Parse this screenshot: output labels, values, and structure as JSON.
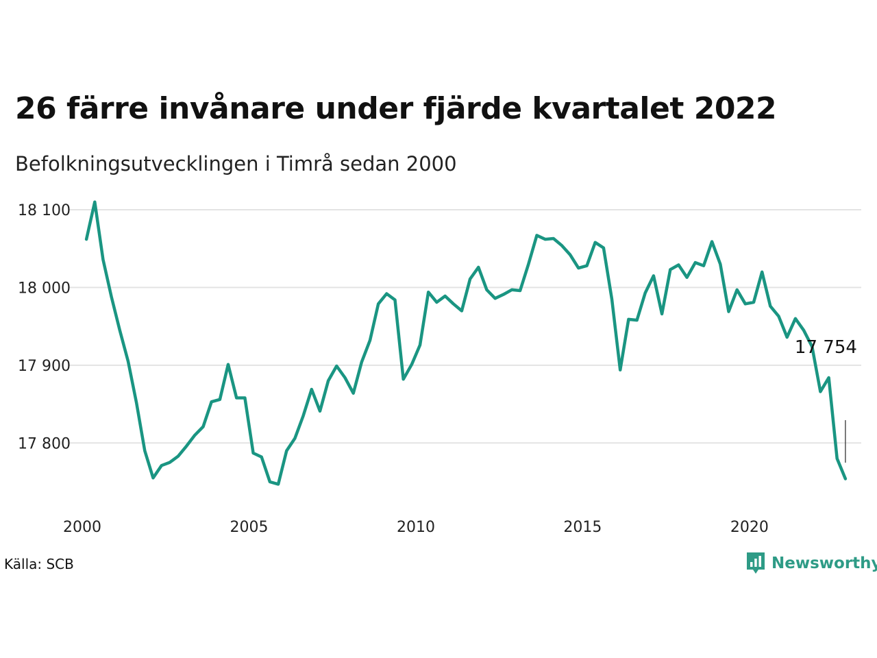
{
  "title": "26 färre invånare under fjärde kvartalet 2022",
  "subtitle": "Befolkningsutvecklingen i Timrå sedan 2000",
  "source": "Källa: SCB",
  "brand": "Newsworthy",
  "colors": {
    "line": "#1a9582",
    "grid": "#e3e3e3",
    "brand": "#2e9b86"
  },
  "chart_data": {
    "type": "line",
    "title": "26 färre invånare under fjärde kvartalet 2022",
    "subtitle": "Befolkningsutvecklingen i Timrå sedan 2000",
    "xlabel": "",
    "ylabel": "",
    "xlim": [
      2000,
      2023
    ],
    "ylim": [
      17735,
      18115
    ],
    "x_ticks": [
      2000,
      2005,
      2010,
      2015,
      2020
    ],
    "x_tick_labels": [
      "2000",
      "2005",
      "2010",
      "2015",
      "2020"
    ],
    "y_ticks": [
      17800,
      17900,
      18000,
      18100
    ],
    "y_tick_labels": [
      "17 800",
      "17 900",
      "18 000",
      "18 100"
    ],
    "grid": true,
    "last_value_label": "17 754",
    "series": [
      {
        "x": [
          2000.125,
          2000.375,
          2000.625,
          2000.875,
          2001.125,
          2001.375,
          2001.625,
          2001.875,
          2002.125,
          2002.375,
          2002.625,
          2002.875,
          2003.125,
          2003.375,
          2003.625,
          2003.875,
          2004.125,
          2004.375,
          2004.625,
          2004.875,
          2005.125,
          2005.375,
          2005.625,
          2005.875,
          2006.125,
          2006.375,
          2006.625,
          2006.875,
          2007.125,
          2007.375,
          2007.625,
          2007.875,
          2008.125,
          2008.375,
          2008.625,
          2008.875,
          2009.125,
          2009.375,
          2009.625,
          2009.875,
          2010.125,
          2010.375,
          2010.625,
          2010.875,
          2011.125,
          2011.375,
          2011.625,
          2011.875,
          2012.125,
          2012.375,
          2012.625,
          2012.875,
          2013.125,
          2013.375,
          2013.625,
          2013.875,
          2014.125,
          2014.375,
          2014.625,
          2014.875,
          2015.125,
          2015.375,
          2015.625,
          2015.875,
          2016.125,
          2016.375,
          2016.625,
          2016.875,
          2017.125,
          2017.375,
          2017.625,
          2017.875,
          2018.125,
          2018.375,
          2018.625,
          2018.875,
          2019.125,
          2019.375,
          2019.625,
          2019.875,
          2020.125,
          2020.375,
          2020.625,
          2020.875,
          2021.125,
          2021.375,
          2021.625,
          2021.875,
          2022.125,
          2022.375,
          2022.625,
          2022.875
        ],
        "values": [
          18062,
          18110,
          18036,
          17988,
          17945,
          17905,
          17852,
          17790,
          17755,
          17771,
          17775,
          17783,
          17796,
          17810,
          17821,
          17853,
          17856,
          17901,
          17858,
          17858,
          17787,
          17782,
          17750,
          17747,
          17790,
          17806,
          17835,
          17869,
          17841,
          17880,
          17899,
          17884,
          17864,
          17904,
          17932,
          17979,
          17992,
          17984,
          17882,
          17901,
          17926,
          17994,
          17981,
          17989,
          17979,
          17970,
          18011,
          18026,
          17997,
          17986,
          17991,
          17997,
          17996,
          18030,
          18067,
          18062,
          18063,
          18054,
          18042,
          18025,
          18028,
          18058,
          18051,
          17985,
          17894,
          17959,
          17958,
          17993,
          18015,
          17966,
          18023,
          18029,
          18013,
          18032,
          18028,
          18059,
          18030,
          17969,
          17997,
          17979,
          17981,
          18020,
          17976,
          17963,
          17936,
          17960,
          17945,
          17924,
          17866,
          17884,
          17780,
          17754
        ]
      }
    ]
  }
}
